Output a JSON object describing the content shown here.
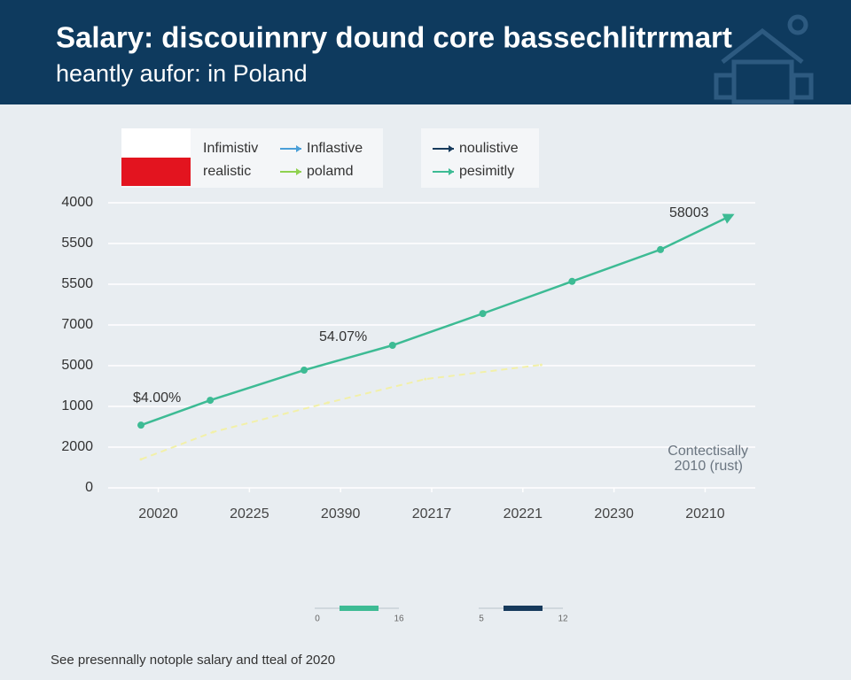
{
  "chart_data": {
    "type": "line",
    "title": "Salary: discouinnry dound core bassechlitrrmart",
    "subtitle": "heantly aufor: in Poland",
    "legend": [
      {
        "name": "Infimistiv"
      },
      {
        "name": "realistic"
      },
      {
        "name": "Inflastive",
        "color": "#4a9fd8"
      },
      {
        "name": "polamd",
        "color": "#8fd14f"
      },
      {
        "name": "noulistive",
        "color": "#163a5c"
      },
      {
        "name": "pesimitly",
        "color": "#3dbb94"
      }
    ],
    "xlim": [
      -0.55,
      6.55
    ],
    "xticks": [
      {
        "value": 0,
        "label": "20020"
      },
      {
        "value": 1,
        "label": "20225"
      },
      {
        "value": 2,
        "label": "20390"
      },
      {
        "value": 3,
        "label": "20217"
      },
      {
        "value": 4,
        "label": "20221"
      },
      {
        "value": 5,
        "label": "20230"
      },
      {
        "value": 6,
        "label": "20210"
      }
    ],
    "ylim": [
      0,
      7
    ],
    "yticks": [
      0,
      {
        "value": 1,
        "label": "2000"
      },
      {
        "value": 2,
        "label": "1000"
      },
      {
        "value": 3,
        "label": "5000"
      },
      {
        "value": 4,
        "label": "7000"
      },
      {
        "value": 5,
        "label": "5500"
      },
      {
        "value": 6,
        "label": "5500"
      },
      {
        "value": 7,
        "label": "4000"
      }
    ],
    "grid": true,
    "series": [
      {
        "color": "#3dbb94",
        "x": [
          -0.19,
          0.57,
          1.6,
          2.57,
          3.56,
          4.54,
          5.51,
          6.3
        ],
        "values": [
          1.54,
          2.15,
          2.89,
          3.5,
          4.28,
          5.07,
          5.85,
          6.7
        ]
      },
      {
        "color": "#f2f0a8",
        "dashed": true,
        "x": [
          -0.19,
          0.6,
          1.86,
          2.93,
          4.2
        ],
        "values": [
          0.7,
          1.37,
          2.09,
          2.67,
          3.02
        ]
      }
    ],
    "annotations": [
      "$4.00%",
      "54.07%",
      "58003",
      "Contectisally",
      "2010 (rust)"
    ],
    "sliders": [
      {
        "min": 0,
        "max": 16,
        "color": "#3dbb94"
      },
      {
        "min": 5,
        "max": 12,
        "color": "#163a5c"
      }
    ],
    "footer": "See presennally notople salary and tteal of 2020"
  }
}
